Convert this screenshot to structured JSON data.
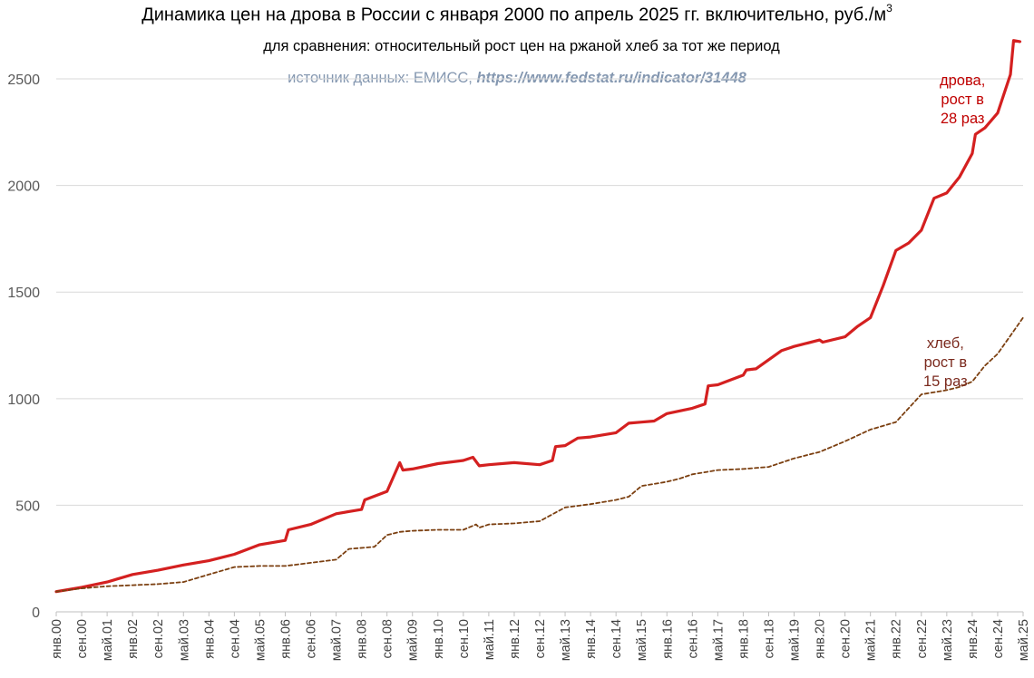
{
  "title": {
    "text": "Динамика цен на дрова в России с января 2000 по апрель 2025 гг. включительно, руб./м",
    "sup": "3"
  },
  "subtitle": "для сравнения: относительный рост цен на ржаной хлеб за тот же период",
  "source": {
    "prefix": "источник данных: ЕМИСС, ",
    "url": "https://www.fedstat.ru/indicator/31448"
  },
  "annotations": {
    "drova": "дрова,\nрост в\n28 раз",
    "hleb": "хлеб,\nрост в\n15 раз"
  },
  "colors": {
    "drova": "#d42020",
    "hleb": "#7b3f10",
    "grid": "#d9d9d9",
    "source": "#8497b0"
  },
  "chart_data": {
    "type": "line",
    "title": "Динамика цен на дрова в России с января 2000 по апрель 2025 гг. включительно, руб./м3",
    "ylim": [
      0,
      2700
    ],
    "yticks": [
      0,
      500,
      1000,
      1500,
      2000,
      2500
    ],
    "grid": true,
    "x_start": "янв.00",
    "x_end": "май.25",
    "xtick_labels": [
      "янв.00",
      "сен.00",
      "май.01",
      "янв.02",
      "сен.02",
      "май.03",
      "янв.04",
      "сен.04",
      "май.05",
      "янв.06",
      "сен.06",
      "май.07",
      "янв.08",
      "сен.08",
      "май.09",
      "янв.10",
      "сен.10",
      "май.11",
      "янв.12",
      "сен.12",
      "май.13",
      "янв.14",
      "сен.14",
      "май.15",
      "янв.16",
      "сен.16",
      "май.17",
      "янв.18",
      "сен.18",
      "май.19",
      "янв.20",
      "сен.20",
      "май.21",
      "янв.22",
      "сен.22",
      "май.23",
      "янв.24",
      "сен.24",
      "май.25"
    ],
    "series": [
      {
        "name": "дрова",
        "style": "solid",
        "points": [
          [
            "янв.00",
            95
          ],
          [
            "сен.00",
            115
          ],
          [
            "май.01",
            140
          ],
          [
            "янв.02",
            175
          ],
          [
            "сен.02",
            195
          ],
          [
            "май.03",
            220
          ],
          [
            "янв.04",
            240
          ],
          [
            "сен.04",
            270
          ],
          [
            "май.05",
            315
          ],
          [
            "янв.06",
            335
          ],
          [
            "фев.06",
            385
          ],
          [
            "сен.06",
            410
          ],
          [
            "май.07",
            460
          ],
          [
            "янв.08",
            480
          ],
          [
            "фев.08",
            525
          ],
          [
            "сен.08",
            565
          ],
          [
            "янв.09",
            700
          ],
          [
            "фев.09",
            665
          ],
          [
            "май.09",
            670
          ],
          [
            "янв.10",
            695
          ],
          [
            "сен.10",
            710
          ],
          [
            "дек.10",
            725
          ],
          [
            "фев.11",
            685
          ],
          [
            "май.11",
            690
          ],
          [
            "янв.12",
            700
          ],
          [
            "сен.12",
            690
          ],
          [
            "янв.13",
            710
          ],
          [
            "фев.13",
            775
          ],
          [
            "май.13",
            780
          ],
          [
            "сен.13",
            815
          ],
          [
            "янв.14",
            820
          ],
          [
            "сен.14",
            840
          ],
          [
            "янв.15",
            885
          ],
          [
            "май.15",
            890
          ],
          [
            "сен.15",
            895
          ],
          [
            "янв.16",
            930
          ],
          [
            "сен.16",
            955
          ],
          [
            "янв.17",
            975
          ],
          [
            "фев.17",
            1060
          ],
          [
            "май.17",
            1065
          ],
          [
            "янв.18",
            1110
          ],
          [
            "фев.18",
            1135
          ],
          [
            "май.18",
            1140
          ],
          [
            "янв.19",
            1225
          ],
          [
            "май.19",
            1245
          ],
          [
            "янв.20",
            1275
          ],
          [
            "фев.20",
            1265
          ],
          [
            "сен.20",
            1290
          ],
          [
            "янв.21",
            1340
          ],
          [
            "май.21",
            1380
          ],
          [
            "сен.21",
            1530
          ],
          [
            "янв.22",
            1695
          ],
          [
            "май.22",
            1730
          ],
          [
            "сен.22",
            1790
          ],
          [
            "янв.23",
            1940
          ],
          [
            "май.23",
            1965
          ],
          [
            "сен.23",
            2040
          ],
          [
            "янв.24",
            2150
          ],
          [
            "фев.24",
            2240
          ],
          [
            "май.24",
            2270
          ],
          [
            "сен.24",
            2340
          ],
          [
            "янв.25",
            2520
          ],
          [
            "фев.25",
            2680
          ],
          [
            "апр.25",
            2675
          ]
        ]
      },
      {
        "name": "хлеб",
        "style": "dashed",
        "points": [
          [
            "янв.00",
            95
          ],
          [
            "сен.00",
            110
          ],
          [
            "май.01",
            120
          ],
          [
            "янв.02",
            125
          ],
          [
            "сен.02",
            130
          ],
          [
            "май.03",
            140
          ],
          [
            "янв.04",
            175
          ],
          [
            "сен.04",
            210
          ],
          [
            "май.05",
            215
          ],
          [
            "янв.06",
            215
          ],
          [
            "сен.06",
            230
          ],
          [
            "май.07",
            245
          ],
          [
            "сен.07",
            295
          ],
          [
            "май.08",
            305
          ],
          [
            "сен.08",
            360
          ],
          [
            "янв.09",
            375
          ],
          [
            "май.09",
            380
          ],
          [
            "янв.10",
            385
          ],
          [
            "сен.10",
            385
          ],
          [
            "янв.11",
            410
          ],
          [
            "фев.11",
            395
          ],
          [
            "май.11",
            410
          ],
          [
            "янв.12",
            415
          ],
          [
            "сен.12",
            425
          ],
          [
            "май.13",
            490
          ],
          [
            "янв.14",
            505
          ],
          [
            "сен.14",
            525
          ],
          [
            "янв.15",
            540
          ],
          [
            "май.15",
            590
          ],
          [
            "сен.15",
            600
          ],
          [
            "янв.16",
            610
          ],
          [
            "май.16",
            625
          ],
          [
            "сен.16",
            645
          ],
          [
            "май.17",
            665
          ],
          [
            "янв.18",
            670
          ],
          [
            "сен.18",
            680
          ],
          [
            "май.19",
            720
          ],
          [
            "янв.20",
            750
          ],
          [
            "сен.20",
            800
          ],
          [
            "май.21",
            855
          ],
          [
            "янв.22",
            890
          ],
          [
            "сен.22",
            1020
          ],
          [
            "май.23",
            1040
          ],
          [
            "сен.23",
            1055
          ],
          [
            "янв.24",
            1080
          ],
          [
            "май.24",
            1155
          ],
          [
            "сен.24",
            1210
          ],
          [
            "май.25",
            1380
          ]
        ]
      }
    ]
  }
}
